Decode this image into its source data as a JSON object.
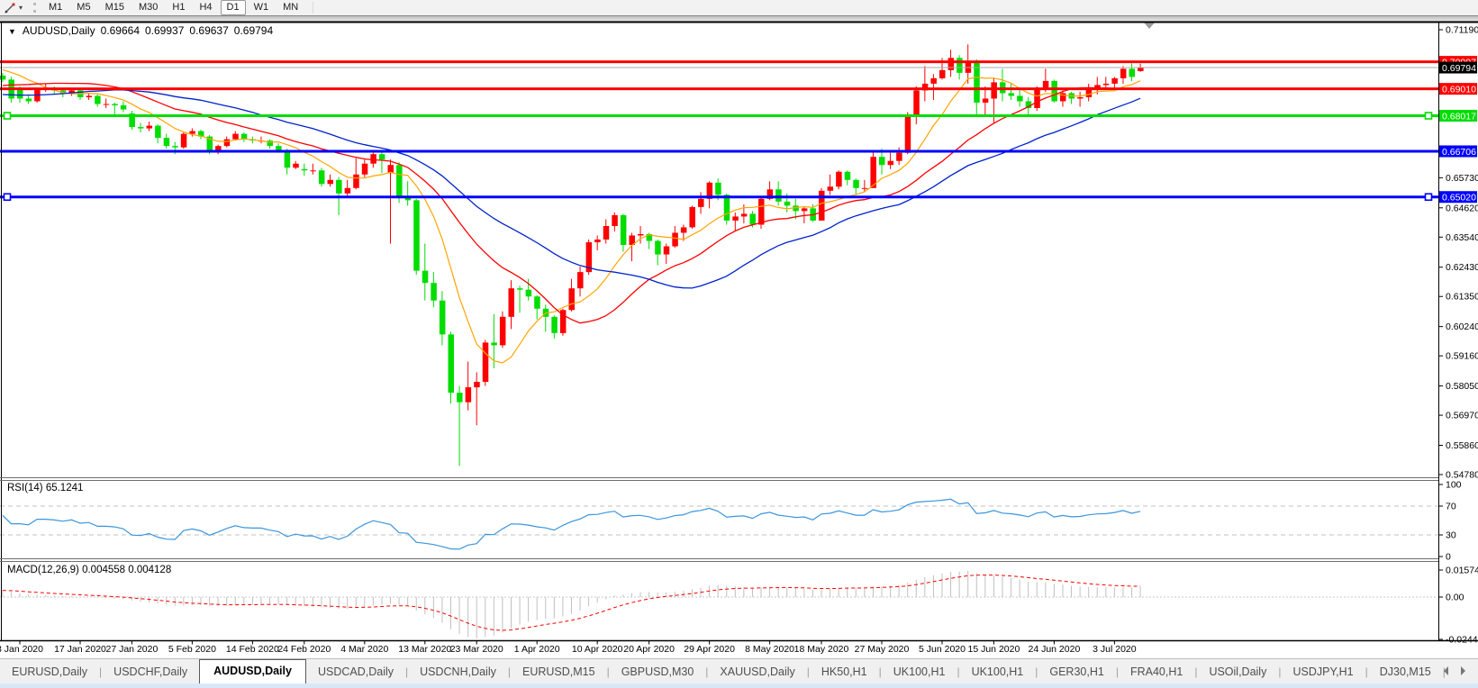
{
  "toolbar": {
    "timeframes": [
      "M1",
      "M5",
      "M15",
      "M30",
      "H1",
      "H4",
      "D1",
      "W1",
      "MN"
    ],
    "active_timeframe": "D1"
  },
  "chart_header": {
    "collapse_icon": "▼",
    "symbol": "AUDUSD,Daily",
    "open": "0.69664",
    "high": "0.69937",
    "low": "0.69637",
    "close": "0.69794"
  },
  "price_axis": {
    "ticks": [
      "0.71190",
      "0.65730",
      "0.64620",
      "0.63540",
      "0.62430",
      "0.61350",
      "0.60240",
      "0.59160",
      "0.58050",
      "0.56970",
      "0.55860",
      "0.54780"
    ]
  },
  "h_lines": [
    {
      "label": "0.70007",
      "price": 0.70007,
      "color": "#ff0000",
      "selected": false
    },
    {
      "label": "0.69010",
      "price": 0.6901,
      "color": "#ff0000",
      "selected": false
    },
    {
      "label": "0.68017",
      "price": 0.68017,
      "color": "#00dd00",
      "selected": true
    },
    {
      "label": "0.66706",
      "price": 0.66706,
      "color": "#0000ff",
      "selected": false
    },
    {
      "label": "0.65020",
      "price": 0.6502,
      "color": "#0000ff",
      "selected": true
    }
  ],
  "bid_line": {
    "label": "0.69794",
    "price": 0.69794,
    "line_color": "#ababab",
    "label_bg": "#000000"
  },
  "panes": {
    "rsi_label": "RSI(14) 65.1241",
    "rsi_ticks": [
      "100",
      "70",
      "30",
      "0"
    ],
    "macd_label": "MACD(12,26,9) 0.004558 0.004128",
    "macd_ticks": [
      "0.015741",
      "0.00",
      "-0.024412"
    ]
  },
  "x_axis": {
    "labels": [
      [
        "8 Jan 2020",
        0
      ],
      [
        "17 Jan 2020",
        7
      ],
      [
        "27 Jan 2020",
        13
      ],
      [
        "5 Feb 2020",
        20
      ],
      [
        "14 Feb 2020",
        27
      ],
      [
        "24 Feb 2020",
        33
      ],
      [
        "4 Mar 2020",
        40
      ],
      [
        "13 Mar 2020",
        47
      ],
      [
        "23 Mar 2020",
        53
      ],
      [
        "1 Apr 2020",
        60
      ],
      [
        "10 Apr 2020",
        67
      ],
      [
        "20 Apr 2020",
        73
      ],
      [
        "29 Apr 2020",
        80
      ],
      [
        "8 May 2020",
        87
      ],
      [
        "18 May 2020",
        93
      ],
      [
        "27 May 2020",
        100
      ],
      [
        "5 Jun 2020",
        107
      ],
      [
        "15 Jun 2020",
        113
      ],
      [
        "24 Jun 2020",
        120
      ],
      [
        "3 Jul 2020",
        127
      ]
    ]
  },
  "tabs": {
    "items": [
      {
        "label": "EURUSD,Daily",
        "active": false
      },
      {
        "label": "USDCHF,Daily",
        "active": false
      },
      {
        "label": "AUDUSD,Daily",
        "active": true
      },
      {
        "label": "USDCAD,Daily",
        "active": false
      },
      {
        "label": "USDCNH,Daily",
        "active": false
      },
      {
        "label": "EURUSD,M15",
        "active": false
      },
      {
        "label": "GBPUSD,M30",
        "active": false
      },
      {
        "label": "XAUUSD,Daily",
        "active": false
      },
      {
        "label": "HK50,H1",
        "active": false
      },
      {
        "label": "UK100,H1",
        "active": false
      },
      {
        "label": "UK100,H1",
        "active": false
      },
      {
        "label": "GER30,H1",
        "active": false
      },
      {
        "label": "FRA40,H1",
        "active": false
      },
      {
        "label": "USOil,Daily",
        "active": false
      },
      {
        "label": "USDJPY,H1",
        "active": false
      },
      {
        "label": "DJ30,M15",
        "active": false
      }
    ],
    "separator": "|"
  },
  "chart_data": {
    "type": "candlestick",
    "symbol": "AUDUSD",
    "timeframe": "Daily",
    "title": "AUDUSD,Daily 0.69664 0.69937 0.69637 0.69794",
    "up_color": "#ff0000",
    "down_color": "#00dd00",
    "color_convention": "red = bullish, green = bearish",
    "y_range": {
      "top": 0.7119,
      "bottom": 0.5478
    },
    "ohlc_format": "[open,high,low,close]",
    "moving_averages": [
      {
        "period": 8,
        "color": "#ffa500"
      },
      {
        "period": 20,
        "color": "#ff0000"
      },
      {
        "period": 33,
        "color": "#0022cc"
      }
    ],
    "indicators": {
      "rsi": {
        "period": 14,
        "current": 65.1241,
        "color": "#3a96dd",
        "levels": [
          70,
          30
        ],
        "range": [
          0,
          100
        ]
      },
      "macd": {
        "fast": 12,
        "slow": 26,
        "signal": 9,
        "main_value": 0.004558,
        "signal_value": 0.004128,
        "histogram_color": "#c0c0c0",
        "signal_color": "#ff0000",
        "axis_max": 0.015741,
        "axis_min": -0.024412
      }
    },
    "pre_closes": [
      0.6755,
      0.677,
      0.6785,
      0.681,
      0.684,
      0.685,
      0.686,
      0.6875,
      0.69,
      0.689,
      0.686,
      0.689,
      0.6855,
      0.684,
      0.6815,
      0.68,
      0.679,
      0.6785,
      0.68,
      0.6775,
      0.677,
      0.682,
      0.685,
      0.684,
      0.6855,
      0.688,
      0.687,
      0.6885,
      0.69,
      0.6875,
      0.6885,
      0.69,
      0.693,
      0.6945,
      0.6955,
      0.6985,
      0.7,
      0.7023,
      0.698,
      0.695,
      0.6935,
      0.6865
    ],
    "lead_candles": [
      [
        0.695,
        0.696,
        0.6925,
        0.6935
      ],
      [
        0.6935,
        0.6945,
        0.685,
        0.6865
      ]
    ],
    "candles": [
      [
        0.6905,
        0.691,
        0.685,
        0.6865
      ],
      [
        0.6865,
        0.688,
        0.6845,
        0.6855
      ],
      [
        0.6855,
        0.6905,
        0.685,
        0.69
      ],
      [
        0.69,
        0.692,
        0.689,
        0.69
      ],
      [
        0.69,
        0.691,
        0.688,
        0.6895
      ],
      [
        0.6895,
        0.6905,
        0.687,
        0.6885
      ],
      [
        0.6885,
        0.6905,
        0.6875,
        0.6895
      ],
      [
        0.6895,
        0.69,
        0.686,
        0.687
      ],
      [
        0.687,
        0.6885,
        0.686,
        0.6875
      ],
      [
        0.6875,
        0.688,
        0.6835,
        0.6845
      ],
      [
        0.6845,
        0.6865,
        0.683,
        0.6845
      ],
      [
        0.6845,
        0.685,
        0.6805,
        0.684
      ],
      [
        0.684,
        0.6855,
        0.6815,
        0.6825
      ],
      [
        0.681,
        0.682,
        0.675,
        0.676
      ],
      [
        0.676,
        0.6775,
        0.674,
        0.6755
      ],
      [
        0.6755,
        0.678,
        0.6745,
        0.6765
      ],
      [
        0.6765,
        0.677,
        0.67,
        0.672
      ],
      [
        0.672,
        0.6735,
        0.668,
        0.669
      ],
      [
        0.669,
        0.6705,
        0.666,
        0.6685
      ],
      [
        0.6685,
        0.674,
        0.668,
        0.6735
      ],
      [
        0.6735,
        0.6755,
        0.6725,
        0.6745
      ],
      [
        0.6745,
        0.675,
        0.6715,
        0.6725
      ],
      [
        0.6725,
        0.673,
        0.666,
        0.667
      ],
      [
        0.667,
        0.6695,
        0.666,
        0.669
      ],
      [
        0.669,
        0.6725,
        0.6685,
        0.6715
      ],
      [
        0.6715,
        0.6745,
        0.671,
        0.6735
      ],
      [
        0.6735,
        0.674,
        0.6705,
        0.6715
      ],
      [
        0.6715,
        0.6725,
        0.67,
        0.671
      ],
      [
        0.671,
        0.6725,
        0.67,
        0.671
      ],
      [
        0.671,
        0.6715,
        0.668,
        0.669
      ],
      [
        0.669,
        0.67,
        0.6665,
        0.6675
      ],
      [
        0.6675,
        0.668,
        0.6585,
        0.661
      ],
      [
        0.661,
        0.6635,
        0.6605,
        0.6625
      ],
      [
        0.6605,
        0.6625,
        0.658,
        0.66
      ],
      [
        0.66,
        0.6625,
        0.6585,
        0.66
      ],
      [
        0.66,
        0.661,
        0.654,
        0.655
      ],
      [
        0.655,
        0.6585,
        0.654,
        0.6565
      ],
      [
        0.6565,
        0.6575,
        0.6435,
        0.6515
      ],
      [
        0.6515,
        0.6565,
        0.6505,
        0.6535
      ],
      [
        0.6535,
        0.6645,
        0.653,
        0.6585
      ],
      [
        0.6585,
        0.664,
        0.6575,
        0.6625
      ],
      [
        0.6625,
        0.6665,
        0.661,
        0.666
      ],
      [
        0.666,
        0.667,
        0.659,
        0.664
      ],
      [
        0.659,
        0.664,
        0.633,
        0.662
      ],
      [
        0.662,
        0.663,
        0.648,
        0.65
      ],
      [
        0.65,
        0.656,
        0.647,
        0.649
      ],
      [
        0.649,
        0.6495,
        0.6215,
        0.623
      ],
      [
        0.623,
        0.633,
        0.612,
        0.6185
      ],
      [
        0.6185,
        0.6225,
        0.6095,
        0.612
      ],
      [
        0.612,
        0.6155,
        0.5955,
        0.5995
      ],
      [
        0.5995,
        0.6005,
        0.574,
        0.578
      ],
      [
        0.578,
        0.5805,
        0.551,
        0.5745
      ],
      [
        0.5745,
        0.5895,
        0.5715,
        0.58
      ],
      [
        0.58,
        0.5855,
        0.566,
        0.582
      ],
      [
        0.582,
        0.5975,
        0.5805,
        0.5965
      ],
      [
        0.5965,
        0.607,
        0.587,
        0.5955
      ],
      [
        0.5955,
        0.608,
        0.5945,
        0.606
      ],
      [
        0.606,
        0.6195,
        0.6015,
        0.6165
      ],
      [
        0.6165,
        0.6175,
        0.6075,
        0.616
      ],
      [
        0.616,
        0.62,
        0.612,
        0.6135
      ],
      [
        0.6135,
        0.614,
        0.605,
        0.609
      ],
      [
        0.609,
        0.6105,
        0.6005,
        0.606
      ],
      [
        0.606,
        0.6065,
        0.598,
        0.6
      ],
      [
        0.6,
        0.609,
        0.599,
        0.6085
      ],
      [
        0.6085,
        0.62,
        0.608,
        0.6165
      ],
      [
        0.6165,
        0.6245,
        0.6135,
        0.6225
      ],
      [
        0.6225,
        0.6345,
        0.6215,
        0.6335
      ],
      [
        0.6335,
        0.636,
        0.6305,
        0.6345
      ],
      [
        0.6345,
        0.642,
        0.633,
        0.6395
      ],
      [
        0.6395,
        0.6445,
        0.6375,
        0.6435
      ],
      [
        0.6435,
        0.644,
        0.63,
        0.6325
      ],
      [
        0.6325,
        0.637,
        0.6265,
        0.636
      ],
      [
        0.636,
        0.6395,
        0.633,
        0.6365
      ],
      [
        0.6365,
        0.637,
        0.631,
        0.634
      ],
      [
        0.634,
        0.6345,
        0.625,
        0.629
      ],
      [
        0.629,
        0.633,
        0.6255,
        0.632
      ],
      [
        0.632,
        0.6395,
        0.6315,
        0.637
      ],
      [
        0.637,
        0.64,
        0.634,
        0.639
      ],
      [
        0.639,
        0.647,
        0.6385,
        0.6465
      ],
      [
        0.6465,
        0.652,
        0.644,
        0.6495
      ],
      [
        0.6495,
        0.656,
        0.646,
        0.6555
      ],
      [
        0.6555,
        0.657,
        0.649,
        0.651
      ],
      [
        0.651,
        0.6515,
        0.64,
        0.6415
      ],
      [
        0.6415,
        0.6445,
        0.6375,
        0.643
      ],
      [
        0.643,
        0.6475,
        0.6405,
        0.644
      ],
      [
        0.644,
        0.645,
        0.639,
        0.64
      ],
      [
        0.64,
        0.6505,
        0.6385,
        0.6495
      ],
      [
        0.6495,
        0.656,
        0.649,
        0.653
      ],
      [
        0.653,
        0.656,
        0.647,
        0.6485
      ],
      [
        0.6485,
        0.6515,
        0.6445,
        0.647
      ],
      [
        0.647,
        0.6495,
        0.642,
        0.645
      ],
      [
        0.645,
        0.6465,
        0.6405,
        0.646
      ],
      [
        0.646,
        0.6475,
        0.641,
        0.6415
      ],
      [
        0.6415,
        0.6535,
        0.6415,
        0.6525
      ],
      [
        0.6525,
        0.6585,
        0.651,
        0.654
      ],
      [
        0.654,
        0.66,
        0.653,
        0.6595
      ],
      [
        0.6595,
        0.66,
        0.6545,
        0.6565
      ],
      [
        0.6565,
        0.657,
        0.651,
        0.6535
      ],
      [
        0.6535,
        0.6565,
        0.652,
        0.6535
      ],
      [
        0.6535,
        0.6675,
        0.6535,
        0.665
      ],
      [
        0.665,
        0.668,
        0.6585,
        0.662
      ],
      [
        0.662,
        0.6665,
        0.6605,
        0.6635
      ],
      [
        0.6635,
        0.6685,
        0.662,
        0.6665
      ],
      [
        0.6665,
        0.6815,
        0.666,
        0.68
      ],
      [
        0.68,
        0.691,
        0.677,
        0.6895
      ],
      [
        0.6895,
        0.6985,
        0.6855,
        0.692
      ],
      [
        0.692,
        0.6955,
        0.686,
        0.694
      ],
      [
        0.694,
        0.7015,
        0.6935,
        0.697
      ],
      [
        0.697,
        0.7045,
        0.6945,
        0.7015
      ],
      [
        0.7015,
        0.7025,
        0.6935,
        0.696
      ],
      [
        0.696,
        0.7065,
        0.692,
        0.7
      ],
      [
        0.7,
        0.701,
        0.68,
        0.685
      ],
      [
        0.685,
        0.691,
        0.68,
        0.6865
      ],
      [
        0.6865,
        0.694,
        0.6775,
        0.6925
      ],
      [
        0.6925,
        0.6975,
        0.6855,
        0.6885
      ],
      [
        0.6885,
        0.692,
        0.686,
        0.6875
      ],
      [
        0.6875,
        0.6905,
        0.6835,
        0.6855
      ],
      [
        0.6855,
        0.687,
        0.6805,
        0.683
      ],
      [
        0.683,
        0.691,
        0.682,
        0.6905
      ],
      [
        0.6905,
        0.6975,
        0.689,
        0.693
      ],
      [
        0.693,
        0.6935,
        0.685,
        0.6855
      ],
      [
        0.6855,
        0.6895,
        0.6835,
        0.6885
      ],
      [
        0.6885,
        0.689,
        0.6845,
        0.6865
      ],
      [
        0.6865,
        0.689,
        0.6835,
        0.687
      ],
      [
        0.687,
        0.692,
        0.6855,
        0.69
      ],
      [
        0.69,
        0.6945,
        0.688,
        0.6915
      ],
      [
        0.6915,
        0.6945,
        0.69,
        0.692
      ],
      [
        0.692,
        0.6945,
        0.69,
        0.694
      ],
      [
        0.694,
        0.6985,
        0.692,
        0.6975
      ],
      [
        0.6975,
        0.6995,
        0.693,
        0.6945
      ],
      [
        0.69664,
        0.69937,
        0.69637,
        0.69794
      ]
    ]
  }
}
